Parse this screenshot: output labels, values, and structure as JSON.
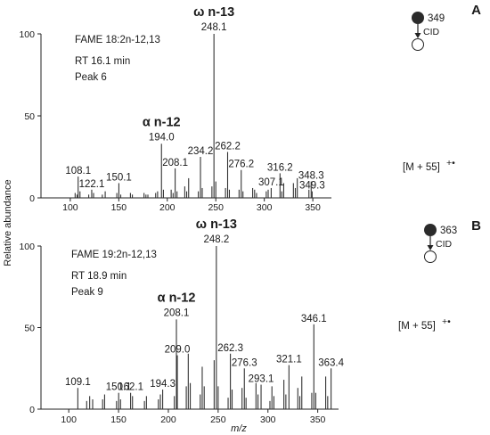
{
  "ylabel": "Relative abundance",
  "xlabel": "m/z",
  "chart_data": [
    {
      "type": "bar",
      "panel": "A",
      "xlim": [
        90,
        360
      ],
      "ylim": [
        0,
        100
      ],
      "xticks": [
        "100",
        "150",
        "200",
        "250",
        "300",
        "350"
      ],
      "yticks": [
        "0",
        "50",
        "100"
      ],
      "info": [
        "FAME 18:2n-12,13",
        "RT 16.1 min",
        "Peak 6"
      ],
      "precursor": "349",
      "cid": "CID",
      "omega": {
        "label": "ω n-13",
        "mz": "248.1"
      },
      "alpha": {
        "label": "α n-12",
        "mz": "194.0"
      },
      "adduct": "[M + 55]",
      "adduct_sup": "+•",
      "labels": [
        {
          "x": 108.1,
          "y": 13,
          "text": "108.1"
        },
        {
          "x": 122.1,
          "y": 5,
          "text": "122.1"
        },
        {
          "x": 150.1,
          "y": 9,
          "text": "150.1"
        },
        {
          "x": 208.1,
          "y": 18,
          "text": "208.1"
        },
        {
          "x": 234.2,
          "y": 25,
          "text": "234.2"
        },
        {
          "x": 262.2,
          "y": 28,
          "text": "262.2"
        },
        {
          "x": 276.2,
          "y": 17,
          "text": "276.2"
        },
        {
          "x": 307.1,
          "y": 6,
          "text": "307.1"
        },
        {
          "x": 316.2,
          "y": 15,
          "text": "316.2"
        },
        {
          "x": 348.3,
          "y": 10,
          "text": "348.3"
        },
        {
          "x": 349.3,
          "y": 4,
          "text": "349.3"
        }
      ],
      "x": [
        105,
        107,
        108.1,
        110,
        119,
        122.1,
        124,
        133,
        136,
        148,
        150.1,
        152,
        162,
        164,
        176,
        178,
        180,
        188,
        190,
        194.0,
        196,
        204,
        206,
        208.1,
        210,
        218,
        220,
        222,
        232,
        234.2,
        236,
        246,
        248.1,
        250,
        260,
        262.2,
        264,
        274,
        276.2,
        278,
        288,
        290,
        292,
        302,
        304,
        307.1,
        316.2,
        318,
        320,
        330,
        332,
        334,
        346,
        348.3,
        349.3
      ],
      "y": [
        3,
        2,
        13,
        4,
        2,
        5,
        3,
        2,
        4,
        3,
        9,
        2,
        3,
        2,
        3,
        2,
        2,
        3,
        4,
        33,
        5,
        5,
        3,
        18,
        4,
        7,
        4,
        12,
        4,
        25,
        6,
        7,
        100,
        10,
        6,
        28,
        5,
        5,
        17,
        4,
        6,
        5,
        3,
        4,
        5,
        6,
        15,
        4,
        9,
        9,
        6,
        12,
        5,
        10,
        4
      ]
    },
    {
      "type": "bar",
      "panel": "B",
      "xlim": [
        90,
        370
      ],
      "ylim": [
        0,
        100
      ],
      "xticks": [
        "100",
        "150",
        "200",
        "250",
        "300",
        "350"
      ],
      "yticks": [
        "0",
        "50",
        "100"
      ],
      "info": [
        "FAME 19:2n-12,13",
        "RT 18.9 min",
        "Peak 9"
      ],
      "precursor": "363",
      "cid": "CID",
      "omega": {
        "label": "ω n-13",
        "mz": "248.2"
      },
      "alpha": {
        "label": "α n-12",
        "mz": "208.1"
      },
      "adduct": "[M + 55]",
      "adduct_sup": "+•",
      "labels": [
        {
          "x": 109.1,
          "y": 13,
          "text": "109.1"
        },
        {
          "x": 150.1,
          "y": 10,
          "text": "150.1"
        },
        {
          "x": 162.1,
          "y": 10,
          "text": "162.1"
        },
        {
          "x": 194.3,
          "y": 12,
          "text": "194.3"
        },
        {
          "x": 209.0,
          "y": 33,
          "text": "209.0"
        },
        {
          "x": 262.3,
          "y": 34,
          "text": "262.3"
        },
        {
          "x": 276.3,
          "y": 25,
          "text": "276.3"
        },
        {
          "x": 293.1,
          "y": 15,
          "text": "293.1"
        },
        {
          "x": 321.1,
          "y": 27,
          "text": "321.1"
        },
        {
          "x": 346.1,
          "y": 52,
          "text": "346.1"
        },
        {
          "x": 363.4,
          "y": 25,
          "text": "363.4"
        }
      ],
      "x": [
        109.1,
        118,
        121,
        124,
        134,
        136,
        148,
        150.1,
        152,
        162.1,
        164,
        176,
        178,
        190,
        192,
        194.3,
        206,
        208.1,
        209.0,
        218,
        220,
        222,
        232,
        234,
        236,
        246,
        248.2,
        250,
        260,
        262.3,
        264,
        274,
        276.3,
        278,
        288,
        290,
        293.1,
        302,
        304,
        306,
        316,
        318,
        321.1,
        330,
        332,
        334,
        344,
        346.1,
        348,
        358,
        360,
        363.4
      ],
      "y": [
        13,
        5,
        8,
        6,
        6,
        9,
        5,
        10,
        6,
        10,
        8,
        5,
        8,
        6,
        9,
        12,
        8,
        55,
        33,
        14,
        34,
        16,
        9,
        26,
        14,
        30,
        100,
        14,
        7,
        34,
        12,
        13,
        25,
        7,
        16,
        9,
        15,
        5,
        14,
        8,
        18,
        9,
        27,
        13,
        8,
        20,
        10,
        52,
        10,
        20,
        8,
        25
      ]
    }
  ]
}
